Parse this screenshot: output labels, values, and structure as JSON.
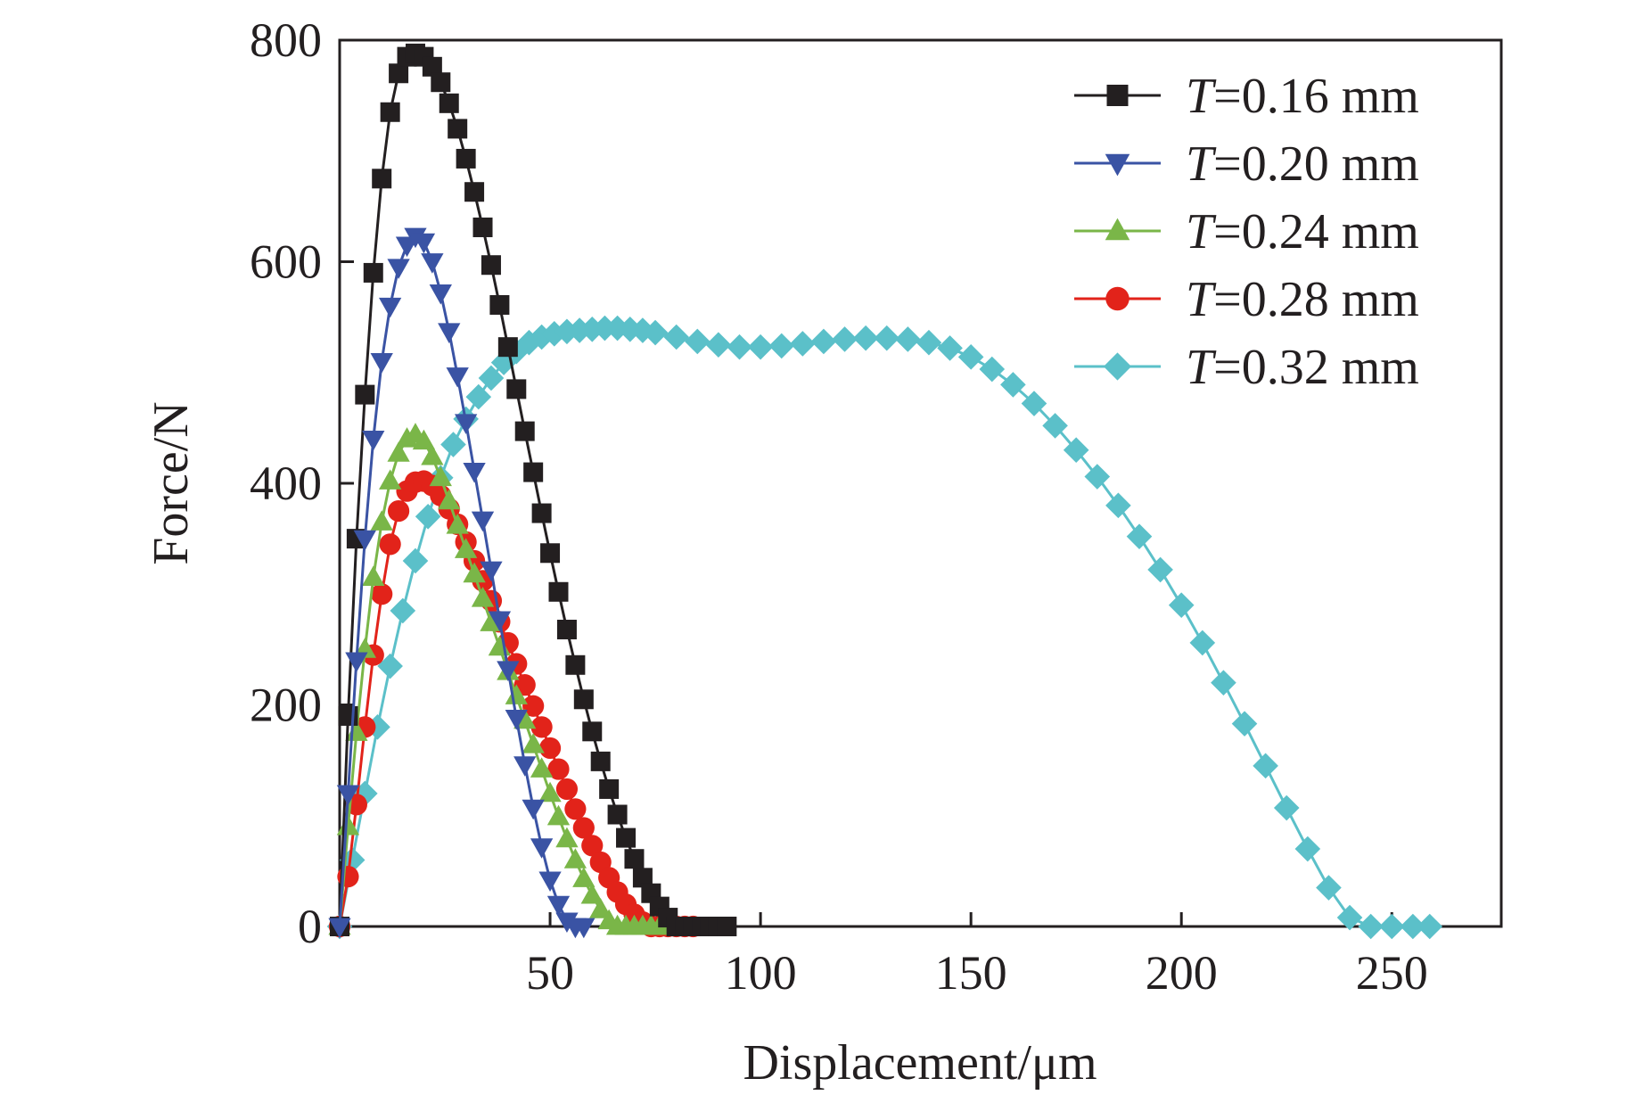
{
  "chart_data": {
    "type": "line",
    "title": "",
    "xlabel": "Displacement/μm",
    "ylabel": "Force/N",
    "xlim": [
      0,
      276
    ],
    "ylim": [
      0,
      800
    ],
    "x_ticks": [
      50,
      100,
      150,
      200,
      250
    ],
    "x_tick_labels": [
      "50",
      "100",
      "150",
      "200",
      "250"
    ],
    "y_ticks": [
      0,
      200,
      400,
      600,
      800
    ],
    "y_tick_labels": [
      "0",
      "200",
      "400",
      "600",
      "800"
    ],
    "grid": false,
    "legend_position": "top-right",
    "series": [
      {
        "name": "T=0.16 mm",
        "name_var": "T",
        "name_rest": "=0.16 mm",
        "marker": "square",
        "color": "#231f20",
        "x": [
          0,
          2,
          4,
          6,
          8,
          10,
          12,
          14,
          16,
          18,
          20,
          22,
          24,
          26,
          28,
          30,
          32,
          34,
          36,
          38,
          40,
          42,
          44,
          46,
          48,
          50,
          52,
          54,
          56,
          58,
          60,
          62,
          64,
          66,
          68,
          70,
          72,
          74,
          76,
          78,
          80,
          82,
          84,
          86,
          88,
          90,
          92
        ],
        "y": [
          0,
          190,
          350,
          480,
          590,
          675,
          735,
          770,
          785,
          788,
          785,
          776,
          762,
          743,
          720,
          693,
          663,
          631,
          597,
          561,
          523,
          485,
          447,
          410,
          373,
          337,
          302,
          268,
          236,
          205,
          176,
          149,
          124,
          101,
          80,
          61,
          44,
          30,
          18,
          8,
          0,
          0,
          0,
          0,
          0,
          0,
          0
        ]
      },
      {
        "name": "T=0.20 mm",
        "name_var": "T",
        "name_rest": "=0.20 mm",
        "marker": "triangle-down",
        "color": "#3a53a4",
        "x": [
          0,
          2,
          4,
          6,
          8,
          10,
          12,
          14,
          16,
          18,
          20,
          22,
          24,
          26,
          28,
          30,
          32,
          34,
          36,
          38,
          40,
          42,
          44,
          46,
          48,
          50,
          52,
          54,
          56,
          58
        ],
        "y": [
          0,
          120,
          240,
          350,
          440,
          510,
          560,
          595,
          615,
          623,
          618,
          600,
          572,
          537,
          497,
          455,
          411,
          367,
          322,
          277,
          232,
          188,
          146,
          107,
          72,
          42,
          20,
          5,
          0,
          0
        ]
      },
      {
        "name": "T=0.24 mm",
        "name_var": "T",
        "name_rest": "=0.24 mm",
        "marker": "triangle-up",
        "color": "#7ab648",
        "x": [
          0,
          2,
          4,
          6,
          8,
          10,
          12,
          14,
          16,
          18,
          20,
          22,
          24,
          26,
          28,
          30,
          32,
          34,
          36,
          38,
          40,
          42,
          44,
          46,
          48,
          50,
          52,
          54,
          56,
          58,
          60,
          62,
          64,
          66,
          68,
          70,
          72,
          74,
          76,
          78
        ],
        "y": [
          0,
          90,
          175,
          250,
          315,
          365,
          402,
          427,
          440,
          444,
          438,
          424,
          405,
          384,
          362,
          340,
          318,
          296,
          274,
          252,
          230,
          208,
          186,
          164,
          142,
          120,
          99,
          79,
          60,
          43,
          28,
          15,
          5,
          0,
          0,
          0,
          0,
          0,
          0,
          0
        ]
      },
      {
        "name": "T=0.28 mm",
        "name_var": "T",
        "name_rest": "=0.28 mm",
        "marker": "circle",
        "color": "#e2231a",
        "x": [
          0,
          2,
          4,
          6,
          8,
          10,
          12,
          14,
          16,
          18,
          20,
          22,
          24,
          26,
          28,
          30,
          32,
          34,
          36,
          38,
          40,
          42,
          44,
          46,
          48,
          50,
          52,
          54,
          56,
          58,
          60,
          62,
          64,
          66,
          68,
          70,
          72,
          74,
          76,
          78,
          80,
          82,
          84
        ],
        "y": [
          0,
          45,
          110,
          180,
          245,
          300,
          345,
          375,
          393,
          401,
          402,
          398,
          389,
          377,
          363,
          347,
          330,
          312,
          294,
          275,
          256,
          237,
          218,
          199,
          180,
          161,
          142,
          124,
          106,
          89,
          73,
          58,
          44,
          31,
          20,
          11,
          4,
          0,
          0,
          0,
          0,
          0,
          0
        ]
      },
      {
        "name": "T=0.32 mm",
        "name_var": "T",
        "name_rest": "=0.32 mm",
        "marker": "diamond",
        "color": "#5bc0c9",
        "x": [
          0,
          3,
          6,
          9,
          12,
          15,
          18,
          21,
          24,
          27,
          30,
          33,
          36,
          39,
          42,
          45,
          48,
          51,
          54,
          57,
          60,
          63,
          66,
          69,
          72,
          75,
          80,
          85,
          90,
          95,
          100,
          105,
          110,
          115,
          120,
          125,
          130,
          135,
          140,
          145,
          150,
          155,
          160,
          165,
          170,
          175,
          180,
          185,
          190,
          195,
          200,
          205,
          210,
          215,
          220,
          225,
          230,
          235,
          240,
          245,
          250,
          255,
          259
        ],
        "y": [
          0,
          60,
          120,
          180,
          235,
          285,
          330,
          370,
          405,
          435,
          458,
          478,
          495,
          509,
          519,
          527,
          532,
          535,
          537,
          538,
          539,
          540,
          540,
          539,
          538,
          536,
          532,
          528,
          525,
          523,
          523,
          524,
          526,
          528,
          530,
          531,
          531,
          530,
          527,
          522,
          514,
          503,
          489,
          472,
          452,
          430,
          406,
          380,
          352,
          322,
          290,
          256,
          220,
          183,
          145,
          107,
          70,
          35,
          8,
          0,
          0,
          0,
          0
        ]
      }
    ]
  }
}
